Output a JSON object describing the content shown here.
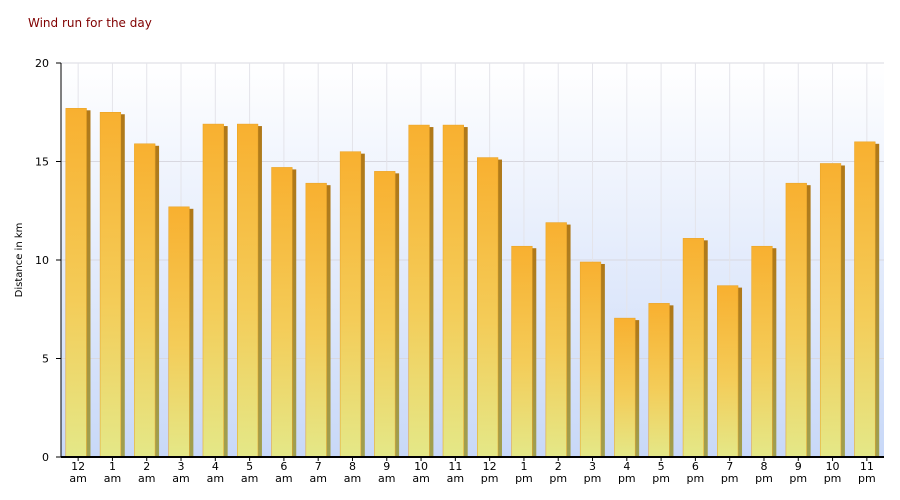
{
  "chart_data": {
    "type": "bar",
    "title": "Wind run for the day",
    "y_label": "Distance in km",
    "categories": [
      "12 am",
      "1 am",
      "2 am",
      "3 am",
      "4 am",
      "5 am",
      "6 am",
      "7 am",
      "8 am",
      "9 am",
      "10 am",
      "11 am",
      "12 pm",
      "1 pm",
      "2 pm",
      "3 pm",
      "4 pm",
      "5 pm",
      "6 pm",
      "7 pm",
      "8 pm",
      "9 pm",
      "10 pm",
      "11 pm"
    ],
    "values": [
      17.7,
      17.5,
      15.9,
      12.7,
      16.9,
      16.9,
      14.7,
      13.9,
      15.5,
      14.5,
      16.85,
      16.85,
      15.2,
      10.7,
      11.9,
      9.9,
      7.05,
      7.8,
      11.1,
      8.7,
      10.7,
      13.9,
      14.9,
      16.0
    ],
    "color": "#f8b030",
    "ylim": [
      0,
      20
    ],
    "yticks": [
      0,
      5,
      10,
      15,
      20
    ],
    "grid": true
  }
}
